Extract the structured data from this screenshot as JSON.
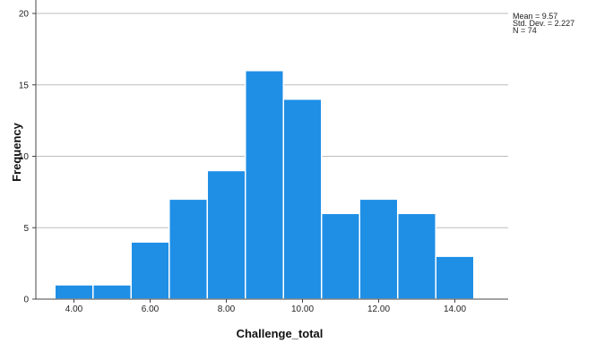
{
  "chart_data": {
    "type": "bar",
    "xlabel": "Challenge_total",
    "ylabel": "Frequency",
    "ylim": [
      0,
      20
    ],
    "yticks": [
      "0",
      "5",
      "10",
      "15",
      "20"
    ],
    "xticks": [
      {
        "value": 4,
        "label": "4.00"
      },
      {
        "value": 6,
        "label": "6.00"
      },
      {
        "value": 8,
        "label": "8.00"
      },
      {
        "value": 10,
        "label": "10.00"
      },
      {
        "value": 12,
        "label": "12.00"
      },
      {
        "value": 14,
        "label": "14.00"
      }
    ],
    "bin_width": 1,
    "bins": [
      {
        "x": 4,
        "count": 1
      },
      {
        "x": 5,
        "count": 1
      },
      {
        "x": 6,
        "count": 4
      },
      {
        "x": 7,
        "count": 7
      },
      {
        "x": 8,
        "count": 9
      },
      {
        "x": 9,
        "count": 16
      },
      {
        "x": 10,
        "count": 14
      },
      {
        "x": 11,
        "count": 6
      },
      {
        "x": 12,
        "count": 7
      },
      {
        "x": 13,
        "count": 6
      },
      {
        "x": 14,
        "count": 3
      }
    ],
    "grid": true,
    "bar_color": "#1f8fe6",
    "stats": {
      "mean": "Mean = 9.57",
      "std_dev": "Std. Dev. = 2.227",
      "n": "N = 74"
    }
  }
}
